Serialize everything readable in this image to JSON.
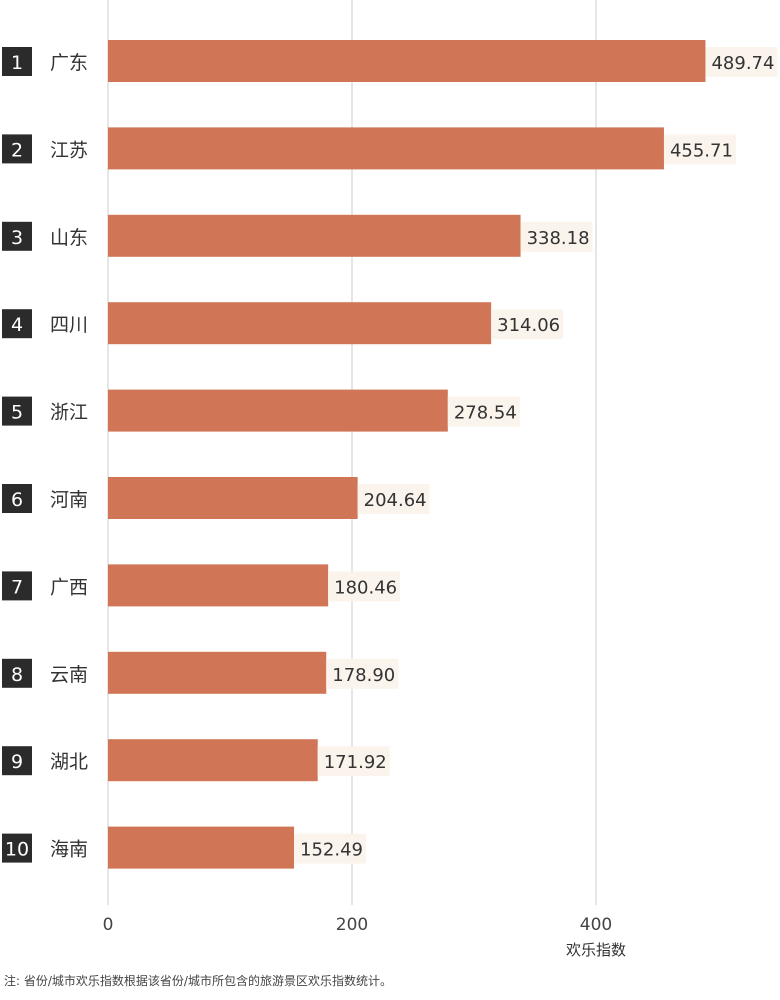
{
  "chart_data": {
    "type": "bar",
    "orientation": "horizontal",
    "categories": [
      "广东",
      "江苏",
      "山东",
      "四川",
      "浙江",
      "河南",
      "广西",
      "云南",
      "湖北",
      "海南"
    ],
    "ranks": [
      "1",
      "2",
      "3",
      "4",
      "5",
      "6",
      "7",
      "8",
      "9",
      "10"
    ],
    "values": [
      489.74,
      455.71,
      338.18,
      314.06,
      278.54,
      204.64,
      180.46,
      178.9,
      171.92,
      152.49
    ],
    "value_labels": [
      "489.74",
      "455.71",
      "338.18",
      "314.06",
      "278.54",
      "204.64",
      "180.46",
      "178.90",
      "171.92",
      "152.49"
    ],
    "xlabel": "欢乐指数",
    "xticks": [
      0,
      200,
      400
    ],
    "xtick_labels": [
      "0",
      "200",
      "400"
    ],
    "xlim": [
      0,
      550
    ],
    "grid": true,
    "bar_color": "#d07656",
    "label_bg": "#fbf4ec"
  },
  "footnote": "注: 省份/城市欢乐指数根据该省份/城市所包含的旅游景区欢乐指数统计。"
}
